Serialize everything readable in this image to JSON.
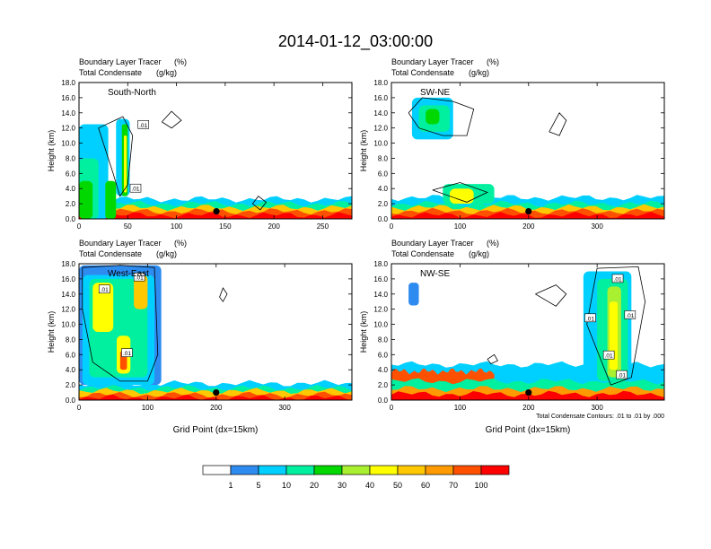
{
  "title": "2014-01-12_03:00:00",
  "chart_data": [
    {
      "type": "heatmap",
      "field_label": "Boundary Layer Tracer",
      "field_units": "(%)",
      "contour_label": "Total Condensate",
      "contour_units": "(g/kg)",
      "panel_label": "South-North",
      "ylabel": "Height (km)",
      "xlabel": "",
      "xlim": [
        0,
        280
      ],
      "ylim": [
        0,
        18
      ],
      "x_ticks": [
        "0",
        "50",
        "100",
        "150",
        "200",
        "250"
      ],
      "y_ticks": [
        "0.0",
        "2.0",
        "4.0",
        "6.0",
        "8.0",
        "10.0",
        "12.0",
        "14.0",
        "16.0",
        "18.0"
      ],
      "marker": {
        "x": 141,
        "y": 1.0
      },
      "contour_labels": [
        {
          "x": 58,
          "y": 4.0,
          "text": ".01"
        },
        {
          "x": 66,
          "y": 12.4,
          "text": ".01"
        }
      ]
    },
    {
      "type": "heatmap",
      "field_label": "Boundary Layer Tracer",
      "field_units": "(%)",
      "contour_label": "Total Condensate",
      "contour_units": "(g/kg)",
      "panel_label": "SW-NE",
      "ylabel": "Height (km)",
      "xlabel": "",
      "xlim": [
        0,
        398
      ],
      "ylim": [
        0,
        18
      ],
      "x_ticks": [
        "0",
        "100",
        "200",
        "300"
      ],
      "y_ticks": [
        "0.0",
        "2.0",
        "4.0",
        "6.0",
        "8.0",
        "10.0",
        "12.0",
        "14.0",
        "16.0",
        "18.0"
      ],
      "marker": {
        "x": 200,
        "y": 1.0
      },
      "contour_labels": []
    },
    {
      "type": "heatmap",
      "field_label": "Boundary Layer Tracer",
      "field_units": "(%)",
      "contour_label": "Total Condensate",
      "contour_units": "(g/kg)",
      "panel_label": "West-East",
      "ylabel": "Height (km)",
      "xlabel": "Grid Point (dx=15km)",
      "xlim": [
        0,
        398
      ],
      "ylim": [
        0,
        18
      ],
      "x_ticks": [
        "0",
        "100",
        "200",
        "300"
      ],
      "y_ticks": [
        "0.0",
        "2.0",
        "4.0",
        "6.0",
        "8.0",
        "10.0",
        "12.0",
        "14.0",
        "16.0",
        "18.0"
      ],
      "marker": {
        "x": 200,
        "y": 1.0
      },
      "contour_labels": [
        {
          "x": 37,
          "y": 14.6,
          "text": ".01"
        },
        {
          "x": 88,
          "y": 16.2,
          "text": ".01"
        },
        {
          "x": 70,
          "y": 6.2,
          "text": ".01"
        }
      ]
    },
    {
      "type": "heatmap",
      "field_label": "Boundary Layer Tracer",
      "field_units": "(%)",
      "contour_label": "Total Condensate",
      "contour_units": "(g/kg)",
      "panel_label": "NW-SE",
      "ylabel": "Height (km)",
      "xlabel": "Grid Point (dx=15km)",
      "note": "Total Condensate Contours: .01 to .01 by .000",
      "xlim": [
        0,
        398
      ],
      "ylim": [
        0,
        18
      ],
      "x_ticks": [
        "0",
        "100",
        "200",
        "300"
      ],
      "y_ticks": [
        "0.0",
        "2.0",
        "4.0",
        "6.0",
        "8.0",
        "10.0",
        "12.0",
        "14.0",
        "16.0",
        "18.0"
      ],
      "marker": {
        "x": 200,
        "y": 1.0
      },
      "contour_labels": [
        {
          "x": 290,
          "y": 10.8,
          "text": ".01"
        },
        {
          "x": 330,
          "y": 16.0,
          "text": ".01"
        },
        {
          "x": 348,
          "y": 11.2,
          "text": ".01"
        },
        {
          "x": 317,
          "y": 5.9,
          "text": ".01"
        },
        {
          "x": 336,
          "y": 3.3,
          "text": ".01"
        }
      ]
    }
  ],
  "colorbar": {
    "labels": [
      "1",
      "5",
      "10",
      "20",
      "30",
      "40",
      "50",
      "60",
      "70",
      "100"
    ],
    "colors": [
      "#ffffff",
      "#2e8cf0",
      "#00d0ff",
      "#00f0a0",
      "#00d800",
      "#a8f030",
      "#ffff00",
      "#ffc800",
      "#ff9a00",
      "#ff5000",
      "#ff0000"
    ]
  }
}
